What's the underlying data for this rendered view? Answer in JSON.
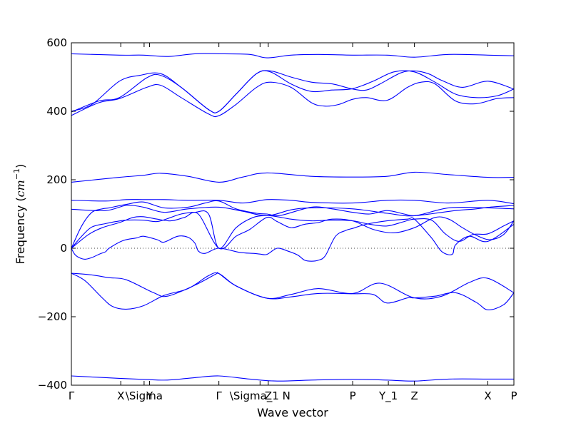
{
  "chart_data": {
    "type": "line",
    "xlabel": "Wave vector",
    "ylabel": "Frequency (cm⁻¹)",
    "ylabel_parts": {
      "prefix": "Frequency (",
      "unit": "cm",
      "exponent": "−1",
      "suffix": ")"
    },
    "ylim": [
      -400,
      600
    ],
    "yticks": [
      -400,
      -200,
      0,
      200,
      400,
      600
    ],
    "ytick_labels": [
      "−400",
      "−200",
      "0",
      "200",
      "400",
      "600"
    ],
    "xlim": [
      0,
      6.45
    ],
    "xticks": [
      {
        "x": 0.0,
        "label": "Γ"
      },
      {
        "x": 0.72,
        "label": "X"
      },
      {
        "x": 1.06,
        "label": "\\Sigma"
      },
      {
        "x": 1.14,
        "label": "Y"
      },
      {
        "x": 2.15,
        "label": "Γ"
      },
      {
        "x": 2.75,
        "label": "\\Sigma_1 N"
      },
      {
        "x": 2.87,
        "label": "Z"
      },
      {
        "x": 4.1,
        "label": "P"
      },
      {
        "x": 4.62,
        "label": "Y_1"
      },
      {
        "x": 5.0,
        "label": "Z"
      },
      {
        "x": 6.07,
        "label": "X"
      },
      {
        "x": 6.45,
        "label": "P"
      }
    ],
    "zero_line": true,
    "grid": false,
    "series": [
      {
        "x": [
          0,
          0.7,
          1.05,
          1.4,
          1.8,
          2.15,
          2.6,
          2.85,
          3.2,
          3.6,
          4.1,
          4.6,
          5.0,
          5.5,
          6.07,
          6.45
        ],
        "y": [
          568,
          564,
          564,
          560,
          568,
          568,
          566,
          556,
          564,
          566,
          564,
          564,
          558,
          566,
          564,
          562
        ]
      },
      {
        "x": [
          0,
          0.3,
          0.7,
          1.0,
          1.3,
          1.6,
          2.0,
          2.15,
          2.4,
          2.7,
          2.9,
          3.2,
          3.5,
          3.8,
          4.1,
          4.3,
          4.5,
          4.8,
          5.0,
          5.2,
          5.4,
          5.7,
          6.07,
          6.45
        ],
        "y": [
          400,
          420,
          488,
          505,
          510,
          470,
          405,
          400,
          450,
          510,
          518,
          500,
          485,
          480,
          465,
          462,
          480,
          512,
          518,
          510,
          490,
          470,
          488,
          465
        ]
      },
      {
        "x": [
          0,
          0.4,
          0.7,
          1.1,
          1.3,
          1.6,
          2.0,
          2.15,
          2.4,
          2.7,
          2.9,
          3.2,
          3.5,
          3.8,
          4.1,
          4.4,
          4.7,
          5.0,
          5.3,
          5.6,
          5.9,
          6.2,
          6.45
        ],
        "y": [
          398,
          430,
          440,
          498,
          505,
          470,
          405,
          400,
          450,
          510,
          515,
          480,
          458,
          462,
          466,
          488,
          515,
          515,
          485,
          450,
          440,
          445,
          465
        ]
      },
      {
        "x": [
          0,
          0.4,
          0.7,
          1.1,
          1.3,
          1.6,
          2.0,
          2.15,
          2.4,
          2.7,
          2.9,
          3.2,
          3.5,
          3.7,
          3.9,
          4.1,
          4.3,
          4.6,
          4.9,
          5.1,
          5.3,
          5.6,
          5.9,
          6.2,
          6.45
        ],
        "y": [
          388,
          425,
          437,
          470,
          476,
          440,
          392,
          387,
          420,
          470,
          485,
          470,
          425,
          415,
          420,
          435,
          440,
          432,
          470,
          485,
          480,
          430,
          422,
          437,
          440
        ]
      },
      {
        "x": [
          0,
          0.7,
          1.05,
          1.3,
          1.7,
          2.15,
          2.5,
          2.85,
          3.5,
          4.1,
          4.6,
          5.0,
          5.5,
          6.07,
          6.45
        ],
        "y": [
          193,
          207,
          213,
          219,
          210,
          193,
          208,
          220,
          210,
          208,
          210,
          222,
          215,
          207,
          207
        ]
      },
      {
        "x": [
          0,
          0.5,
          0.8,
          1.05,
          1.35,
          1.7,
          2.15,
          2.5,
          2.85,
          3.2,
          3.5,
          4.1,
          4.6,
          5.0,
          5.5,
          6.07,
          6.45
        ],
        "y": [
          140,
          138,
          142,
          142,
          142,
          140,
          140,
          132,
          142,
          140,
          134,
          132,
          140,
          140,
          132,
          140,
          130
        ]
      },
      {
        "x": [
          0,
          0.5,
          0.8,
          1.05,
          1.35,
          1.7,
          2.15,
          2.5,
          2.85,
          3.2,
          3.5,
          4.1,
          4.6,
          5.0,
          5.5,
          6.07,
          6.45
        ],
        "y": [
          114,
          110,
          125,
          120,
          105,
          115,
          120,
          108,
          95,
          112,
          118,
          115,
          102,
          95,
          118,
          118,
          115
        ]
      },
      {
        "x": [
          0,
          0.15,
          0.3,
          0.45,
          0.55,
          0.8,
          1.05,
          1.35,
          1.7,
          1.95,
          2.15,
          2.4,
          2.7,
          2.85,
          3.05,
          3.5,
          3.8,
          4.1,
          4.35,
          4.6,
          4.85,
          5.0,
          5.3,
          5.6,
          5.9,
          6.1,
          6.45
        ],
        "y": [
          0,
          65,
          105,
          115,
          118,
          128,
          135,
          118,
          120,
          132,
          138,
          115,
          102,
          100,
          96,
          120,
          115,
          105,
          100,
          110,
          100,
          95,
          102,
          110,
          115,
          120,
          125
        ]
      },
      {
        "x": [
          0,
          0.15,
          0.3,
          0.5,
          0.65,
          0.8,
          1.05,
          1.25,
          1.45,
          1.6,
          1.8,
          2.0,
          2.15,
          2.4,
          2.65,
          2.85,
          3.0,
          3.2,
          3.5,
          3.8,
          4.1,
          4.35,
          4.6,
          4.85,
          5.0,
          5.25,
          5.45,
          5.65,
          5.85,
          6.07,
          6.3,
          6.45
        ],
        "y": [
          0,
          35,
          62,
          72,
          78,
          82,
          82,
          78,
          90,
          100,
          105,
          100,
          0,
          60,
          90,
          95,
          92,
          85,
          80,
          82,
          80,
          70,
          65,
          78,
          85,
          82,
          42,
          20,
          40,
          42,
          65,
          80
        ]
      },
      {
        "x": [
          0,
          0.25,
          0.45,
          0.7,
          0.9,
          1.05,
          1.25,
          1.45,
          1.65,
          1.85,
          2.15,
          2.4,
          2.6,
          2.85,
          3.0,
          3.2,
          3.4,
          3.6,
          3.8,
          4.1,
          4.4,
          4.7,
          5.0,
          5.3,
          5.5,
          5.7,
          5.9,
          6.1,
          6.3,
          6.45
        ],
        "y": [
          0,
          40,
          60,
          75,
          90,
          92,
          85,
          80,
          90,
          100,
          0,
          35,
          55,
          90,
          78,
          60,
          70,
          75,
          85,
          80,
          55,
          45,
          60,
          90,
          85,
          60,
          38,
          25,
          40,
          80
        ]
      },
      {
        "x": [
          0,
          0.05,
          0.12,
          0.2,
          0.3,
          0.42,
          0.5,
          0.55,
          0.75,
          0.95,
          1.05,
          1.25,
          1.35,
          1.55,
          1.7,
          1.8,
          1.85,
          1.95,
          2.15,
          2.45,
          2.65,
          2.75,
          2.85,
          3.0,
          3.15,
          3.3,
          3.4,
          3.5,
          3.6,
          3.7,
          3.85,
          4.0,
          4.1,
          4.3,
          4.6,
          4.9,
          5.0,
          5.25,
          5.4,
          5.55,
          5.6,
          5.8,
          6.07,
          6.45
        ],
        "y": [
          0,
          -18,
          -28,
          -32,
          -27,
          -16,
          -10,
          0,
          22,
          30,
          35,
          25,
          18,
          35,
          32,
          15,
          -8,
          -15,
          0,
          -12,
          -15,
          -17,
          -18,
          0,
          -8,
          -20,
          -35,
          -38,
          -35,
          -22,
          35,
          52,
          58,
          70,
          80,
          85,
          85,
          30,
          -10,
          -18,
          10,
          35,
          20,
          70
        ]
      },
      {
        "x": [
          0,
          0.3,
          0.55,
          0.8,
          1.2,
          1.4,
          1.8,
          2.1,
          2.15,
          2.4,
          2.85,
          3.2,
          3.6,
          4.1,
          4.5,
          5.0,
          5.4,
          5.8,
          6.07,
          6.45
        ],
        "y": [
          -73,
          -78,
          -86,
          -92,
          -130,
          -140,
          -108,
          -76,
          -74,
          -110,
          -146,
          -135,
          -118,
          -132,
          -102,
          -145,
          -140,
          -100,
          -88,
          -130
        ]
      },
      {
        "x": [
          0,
          0.2,
          0.45,
          0.6,
          0.8,
          1.05,
          1.35,
          1.7,
          2.0,
          2.15,
          2.4,
          2.85,
          3.2,
          3.6,
          4.1,
          4.4,
          4.6,
          4.9,
          5.0,
          5.3,
          5.6,
          5.9,
          6.07,
          6.3,
          6.45
        ],
        "y": [
          -73,
          -95,
          -145,
          -170,
          -178,
          -168,
          -138,
          -118,
          -80,
          -74,
          -110,
          -146,
          -142,
          -132,
          -133,
          -135,
          -160,
          -145,
          -145,
          -140,
          -130,
          -158,
          -180,
          -165,
          -130
        ]
      },
      {
        "x": [
          0,
          0.7,
          1.05,
          1.4,
          1.8,
          2.15,
          2.6,
          3.0,
          3.5,
          4.1,
          4.6,
          5.0,
          5.5,
          6.07,
          6.45
        ],
        "y": [
          -373,
          -380,
          -383,
          -385,
          -378,
          -373,
          -382,
          -388,
          -385,
          -383,
          -385,
          -388,
          -382,
          -382,
          -382
        ]
      }
    ]
  }
}
